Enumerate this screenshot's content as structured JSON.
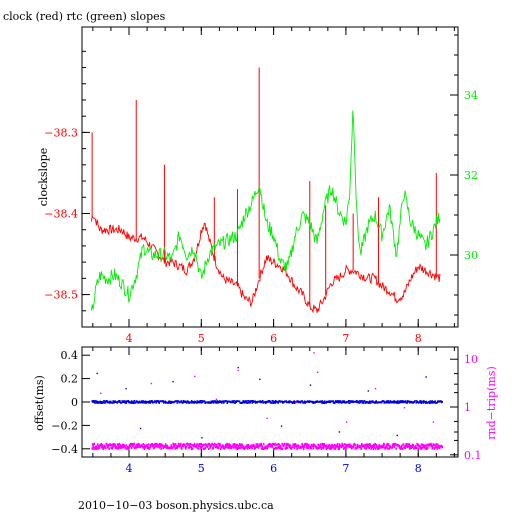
{
  "chart_data": [
    {
      "type": "line",
      "title": "clock (red) rtc (green) slopes",
      "ylabel_left": "clockslope",
      "ylabel_right": "",
      "xlim": [
        3.35,
        8.55
      ],
      "ylim_left": [
        -38.54,
        -38.17
      ],
      "ylim_right": [
        28.2,
        35.7
      ],
      "x_ticks": [
        4,
        5,
        6,
        7,
        8
      ],
      "y_ticks_left": [
        -38.3,
        -38.4,
        -38.5
      ],
      "y_ticks_left_labels": [
        "−38.3",
        "−38.4",
        "−38.5"
      ],
      "y_ticks_right": [
        30,
        32,
        34
      ],
      "series": [
        {
          "axis": "left",
          "color": "#ff0000",
          "x": [
            3.48,
            3.5,
            3.55,
            3.6,
            3.7,
            3.8,
            3.9,
            4.0,
            4.1,
            4.2,
            4.3,
            4.4,
            4.5,
            4.6,
            4.7,
            4.8,
            4.9,
            4.95,
            5.0,
            5.05,
            5.1,
            5.2,
            5.3,
            5.4,
            5.5,
            5.6,
            5.7,
            5.8,
            5.9,
            6.0,
            6.1,
            6.2,
            6.3,
            6.4,
            6.5,
            6.6,
            6.7,
            6.8,
            6.9,
            7.0,
            7.1,
            7.2,
            7.3,
            7.4,
            7.5,
            7.6,
            7.7,
            7.8,
            7.9,
            8.0,
            8.1,
            8.2,
            8.3
          ],
          "y": [
            -38.41,
            -38.4,
            -38.41,
            -38.42,
            -38.42,
            -38.42,
            -38.42,
            -38.43,
            -38.43,
            -38.43,
            -38.44,
            -38.45,
            -38.46,
            -38.46,
            -38.465,
            -38.47,
            -38.455,
            -38.44,
            -38.42,
            -38.41,
            -38.43,
            -38.46,
            -38.48,
            -38.485,
            -38.49,
            -38.505,
            -38.51,
            -38.48,
            -38.455,
            -38.46,
            -38.465,
            -38.475,
            -38.49,
            -38.5,
            -38.515,
            -38.52,
            -38.505,
            -38.485,
            -38.48,
            -38.47,
            -38.47,
            -38.475,
            -38.48,
            -38.48,
            -38.49,
            -38.495,
            -38.505,
            -38.5,
            -38.48,
            -38.465,
            -38.47,
            -38.475,
            -38.48
          ],
          "spikes": [
            {
              "x": 3.49,
              "y": -38.3
            },
            {
              "x": 4.1,
              "y": -38.26
            },
            {
              "x": 4.49,
              "y": -38.34
            },
            {
              "x": 5.18,
              "y": -38.38
            },
            {
              "x": 5.5,
              "y": -38.37
            },
            {
              "x": 5.8,
              "y": -38.22
            },
            {
              "x": 6.5,
              "y": -38.36
            },
            {
              "x": 6.72,
              "y": -38.39
            },
            {
              "x": 7.1,
              "y": -38.4
            },
            {
              "x": 7.45,
              "y": -38.38
            },
            {
              "x": 8.25,
              "y": -38.35
            }
          ]
        },
        {
          "axis": "right",
          "color": "#00ee00",
          "x": [
            3.48,
            3.55,
            3.6,
            3.7,
            3.8,
            3.9,
            4.0,
            4.1,
            4.2,
            4.3,
            4.4,
            4.5,
            4.6,
            4.7,
            4.8,
            4.9,
            5.0,
            5.1,
            5.2,
            5.3,
            5.4,
            5.5,
            5.6,
            5.7,
            5.8,
            5.9,
            6.0,
            6.1,
            6.2,
            6.3,
            6.4,
            6.5,
            6.6,
            6.7,
            6.8,
            6.9,
            7.0,
            7.05,
            7.1,
            7.15,
            7.2,
            7.3,
            7.4,
            7.5,
            7.6,
            7.7,
            7.8,
            7.9,
            8.0,
            8.1,
            8.2,
            8.3
          ],
          "y": [
            28.5,
            29.2,
            29.5,
            29.4,
            29.5,
            29.3,
            29.0,
            29.5,
            30.2,
            30.0,
            30.0,
            30.0,
            29.9,
            30.5,
            30.0,
            30.2,
            29.4,
            30.0,
            30.2,
            30.3,
            30.4,
            30.5,
            31.0,
            31.3,
            31.8,
            30.8,
            30.5,
            29.8,
            29.7,
            30.5,
            31.0,
            30.8,
            30.3,
            31.2,
            31.7,
            31.1,
            30.8,
            31.5,
            33.8,
            31.0,
            30.0,
            30.7,
            31.0,
            30.5,
            31.2,
            30.0,
            31.6,
            30.8,
            30.5,
            30.2,
            30.6,
            31.0
          ]
        }
      ]
    },
    {
      "type": "scatter",
      "ylabel_left": "offset(ms)",
      "ylabel_right": "rnd−trip(ms)",
      "xlim": [
        3.35,
        8.55
      ],
      "ylim_left": [
        -0.47,
        0.47
      ],
      "ylim_right_log": [
        0.09,
        18
      ],
      "x_ticks": [
        4,
        5,
        6,
        7,
        8
      ],
      "y_ticks_left": [
        0.4,
        0.2,
        0,
        -0.2,
        -0.4
      ],
      "y_ticks_left_labels": [
        "0.4",
        "0.2",
        "0",
        "−0.2",
        "−0.4"
      ],
      "y_ticks_right": [
        10,
        1,
        0.1
      ],
      "y_ticks_right_labels": [
        "10",
        "1",
        "0.1"
      ],
      "series": [
        {
          "axis": "left",
          "color": "#0000dd",
          "x_range": [
            3.48,
            8.32
          ],
          "y": 0.0
        },
        {
          "axis": "right",
          "color": "#ff00ff",
          "x_range": [
            3.48,
            8.32
          ],
          "y": 0.15
        }
      ],
      "outliers_left": [
        [
          3.55,
          0.25
        ],
        [
          3.95,
          0.12
        ],
        [
          4.15,
          -0.22
        ],
        [
          4.6,
          0.18
        ],
        [
          5.0,
          -0.3
        ],
        [
          5.5,
          0.3
        ],
        [
          5.8,
          0.2
        ],
        [
          6.1,
          -0.2
        ],
        [
          6.5,
          0.15
        ],
        [
          6.9,
          -0.25
        ],
        [
          7.3,
          0.1
        ],
        [
          7.7,
          -0.28
        ],
        [
          8.1,
          0.22
        ]
      ],
      "outliers_right": [
        [
          3.6,
          2.0
        ],
        [
          4.3,
          3.2
        ],
        [
          4.9,
          4.5
        ],
        [
          5.2,
          1.5
        ],
        [
          5.5,
          6.0
        ],
        [
          5.9,
          0.6
        ],
        [
          6.3,
          1.3
        ],
        [
          6.55,
          14.0
        ],
        [
          6.6,
          5.5
        ],
        [
          7.0,
          0.5
        ],
        [
          7.4,
          2.5
        ],
        [
          7.8,
          1.0
        ],
        [
          8.2,
          0.5
        ]
      ]
    }
  ],
  "colors": {
    "frame": "#000000",
    "left_tick_top": "#ff0000",
    "right_tick_top": "#00ee00",
    "left_tick_bottom": "#000000",
    "right_tick_bottom": "#ff00ff",
    "x_ticks_color": "#0000dd"
  },
  "footer": "2010−10−03  boson.physics.ubc.ca"
}
